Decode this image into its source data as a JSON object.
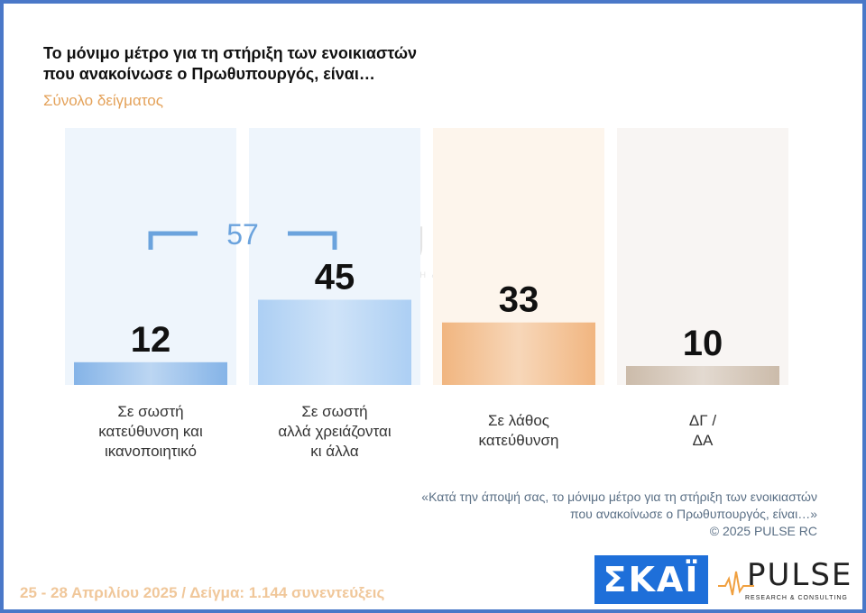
{
  "header": {
    "title_line1": "Το μόνιμο μέτρο για τη στήριξη των ενοικιαστών",
    "title_line2": "που ανακοίνωσε ο Πρωθυπουργός, είναι…",
    "subtitle": "Σύνολο δείγματος"
  },
  "chart_data": {
    "type": "bar",
    "categories": [
      "Σε σωστή\nκατεύθυνση και\nικανοποιητικό",
      "Σε σωστή\nαλλά χρειάζονται\nκι άλλα",
      "Σε λάθος\nκατεύθυνση",
      "ΔΓ /\nΔΑ"
    ],
    "values": [
      12,
      45,
      33,
      10
    ],
    "ylim": [
      0,
      100
    ],
    "grid": false,
    "bracket": {
      "spans": [
        0,
        1
      ],
      "value": "57"
    },
    "colors": [
      "#7fb0e6",
      "#a9cdf3",
      "#f0b27a",
      "#c9b8a6"
    ],
    "bg_colors": [
      "#eef5fc",
      "#eef5fc",
      "#fdf5ec",
      "#f8f5f3"
    ],
    "bracket_color": "#6ba3dd"
  },
  "watermark": {
    "word": "PULSE",
    "sub": "RESEARCH & CONSULTING"
  },
  "footnote": {
    "quote": "«Κατά την άποψή σας, το μόνιμο μέτρο για τη στήριξη των ενοικιαστών\nπου ανακοίνωσε ο Πρωθυπουργός, είναι…»",
    "copyright": "©  2025  PULSE RC"
  },
  "footer": {
    "dates_sample": "25 - 28 Απριλίου 2025  /  Δείγμα:  1.144 συνεντεύξεις"
  },
  "logos": {
    "skai": "ΣΚΑΪ",
    "pulse_word": "PULSE",
    "pulse_sub": "RESEARCH & CONSULTING"
  }
}
